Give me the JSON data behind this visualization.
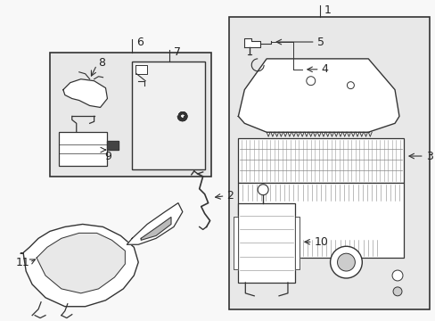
{
  "bg_color": "#f8f8f8",
  "line_color": "#333333",
  "text_color": "#222222",
  "box_bg": "#e8e8e8",
  "white": "#ffffff",
  "fig_w": 4.89,
  "fig_h": 3.6,
  "dpi": 100
}
